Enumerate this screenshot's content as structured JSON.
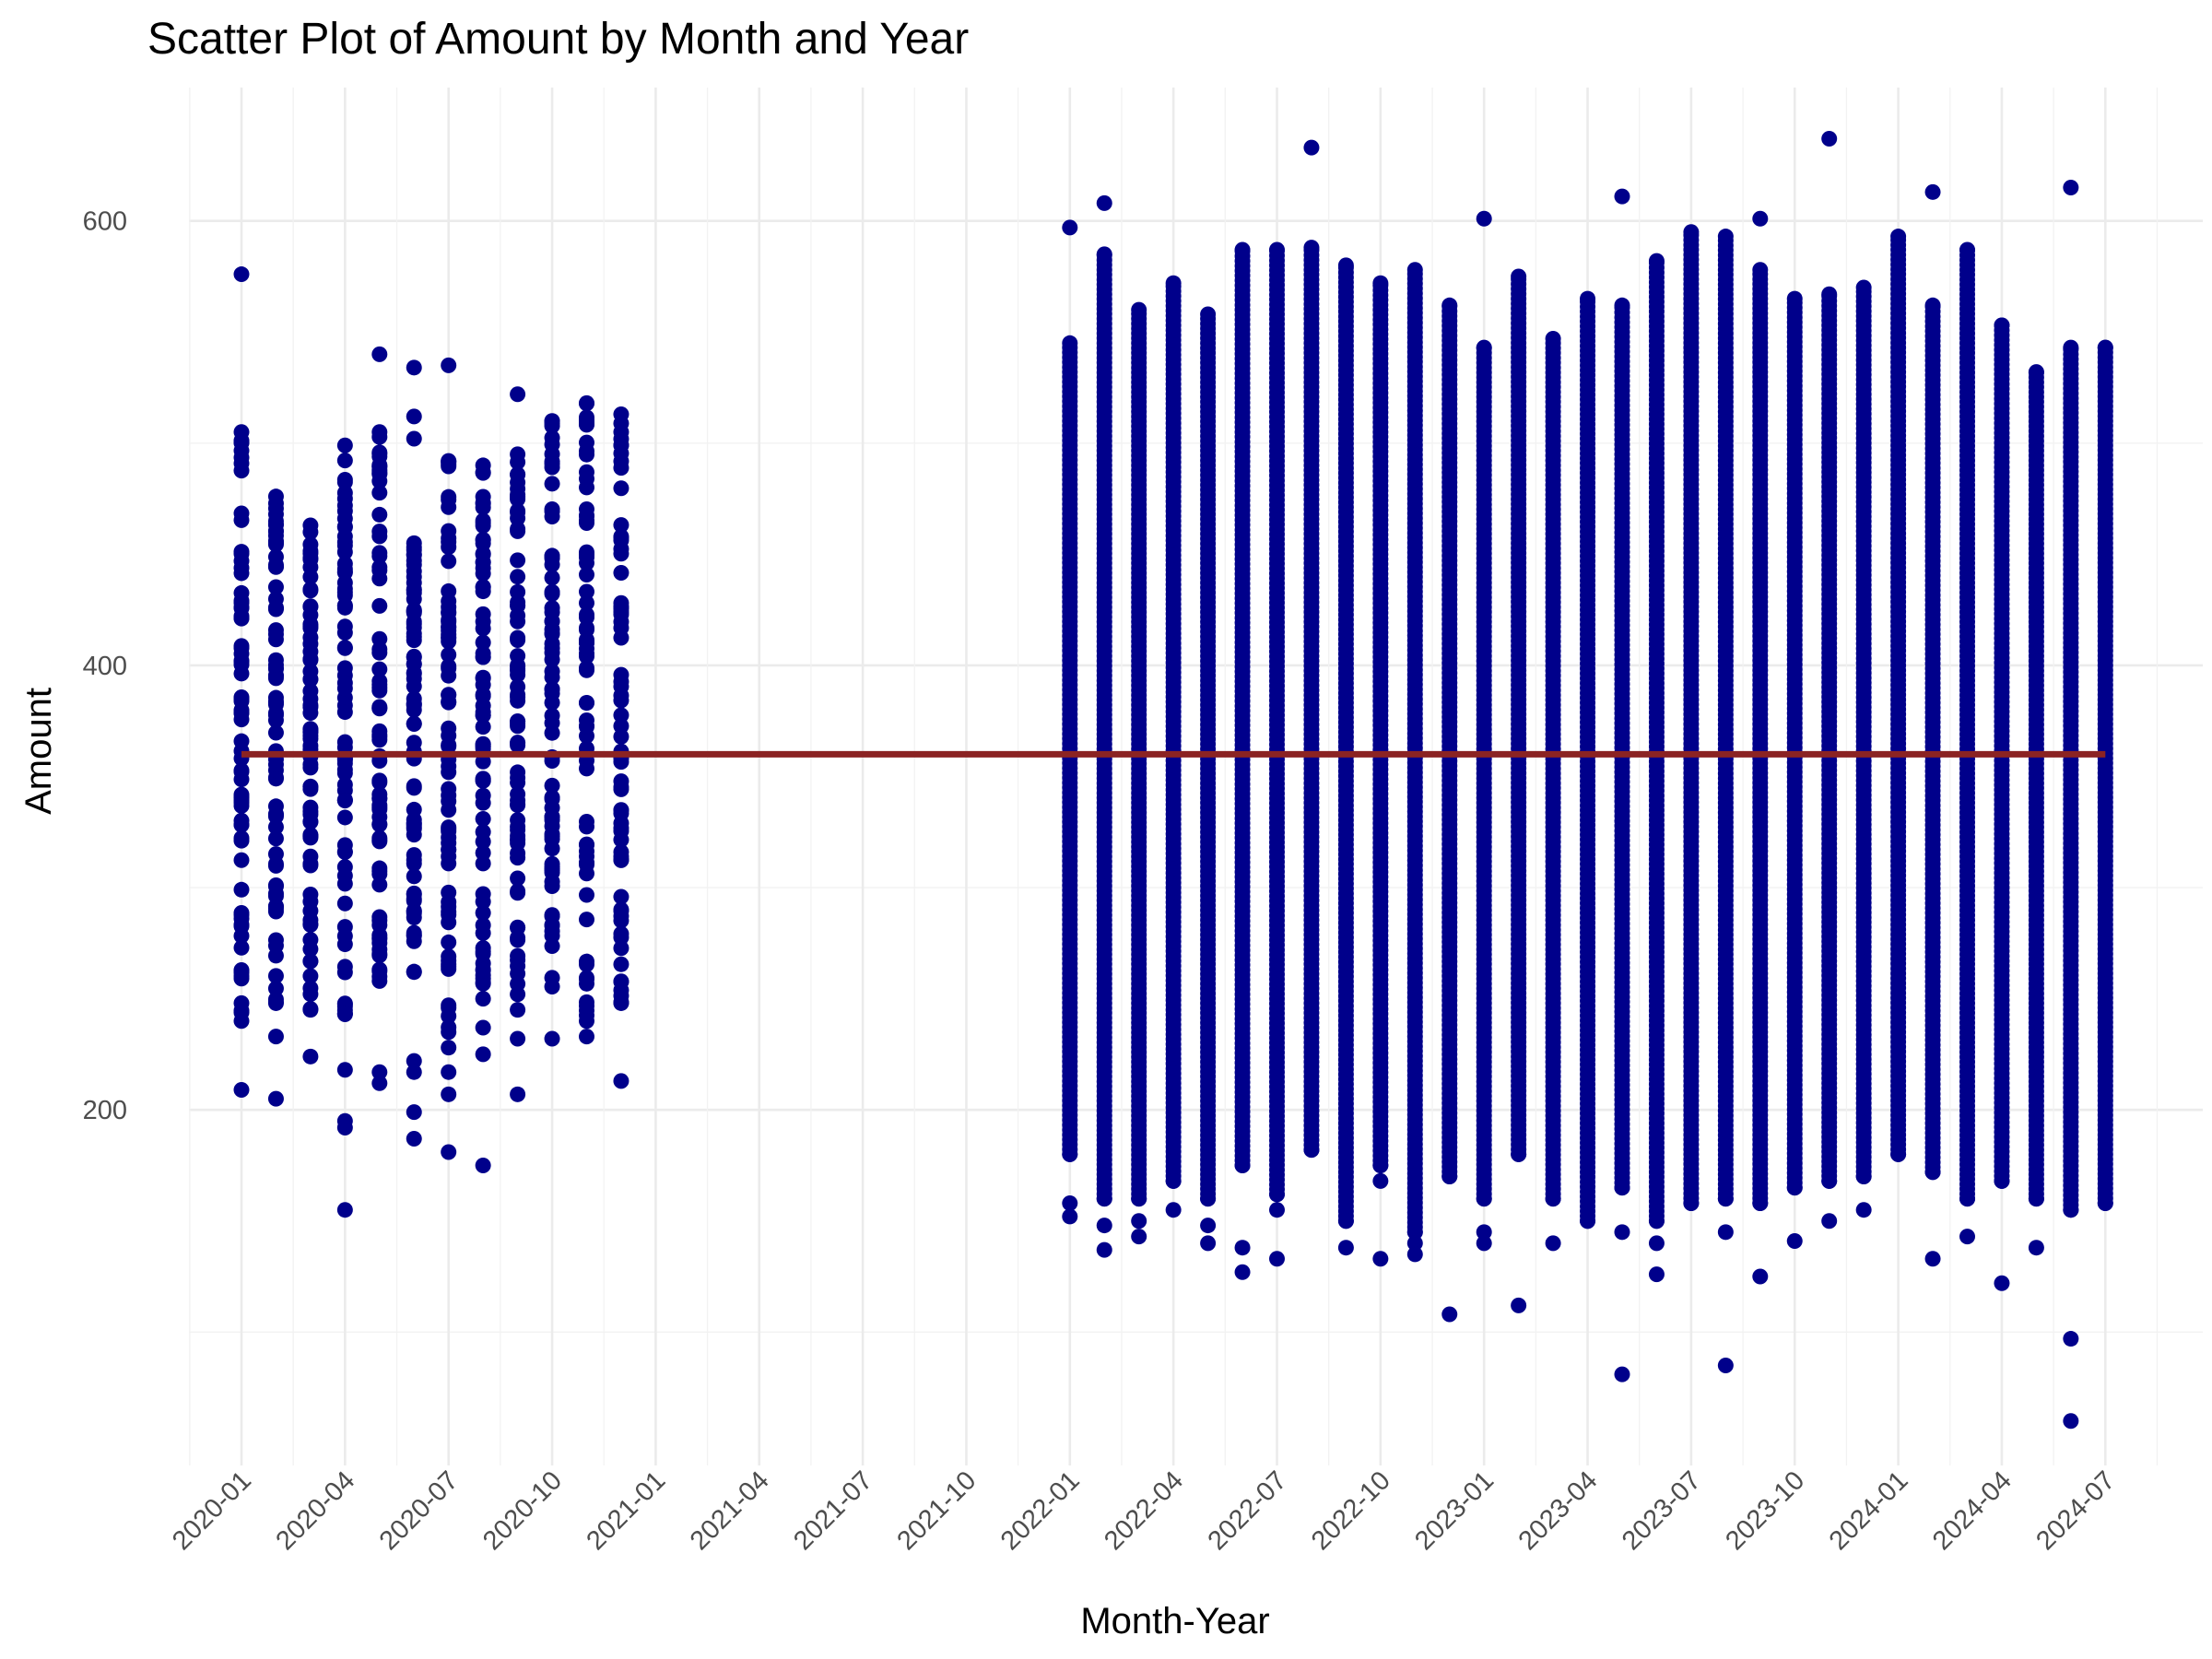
{
  "chart_data": {
    "type": "scatter",
    "title": "Scatter Plot of Amount by Month and Year",
    "xlabel": "Month-Year",
    "ylabel": "Amount",
    "x_ticks": [
      "2020-01",
      "2020-04",
      "2020-07",
      "2020-10",
      "2021-01",
      "2021-04",
      "2021-07",
      "2021-10",
      "2022-01",
      "2022-04",
      "2022-07",
      "2022-10",
      "2023-01",
      "2023-04",
      "2023-07",
      "2023-10",
      "2024-01",
      "2024-04",
      "2024-07"
    ],
    "y_ticks": [
      200,
      400,
      600
    ],
    "ylim": [
      40,
      660
    ],
    "xlim": [
      "2019-11-15",
      "2024-08-15"
    ],
    "grid": true,
    "point_color": "#00008B",
    "line_color": "#8B2323",
    "reference_line": {
      "value": 360,
      "from": "2020-01",
      "to": "2024-07"
    },
    "series": [
      {
        "type": "scatter",
        "points": [
          {
            "x": "2020-01",
            "range": [
              240,
              505
            ],
            "outliers": [
              576,
              209
            ]
          },
          {
            "x": "2020-02",
            "range": [
              248,
              476
            ],
            "outliers": [
              233,
              205
            ]
          },
          {
            "x": "2020-03",
            "range": [
              245,
              463
            ],
            "outliers": [
              224
            ]
          },
          {
            "x": "2020-04",
            "range": [
              243,
              499
            ],
            "outliers": [
              218,
              195,
              192,
              155
            ]
          },
          {
            "x": "2020-05",
            "range": [
              258,
              505
            ],
            "outliers": [
              540,
              217,
              212
            ]
          },
          {
            "x": "2020-06",
            "range": [
              262,
              455
            ],
            "outliers": [
              534,
              512,
              502,
              222,
              217,
              199,
              187
            ]
          },
          {
            "x": "2020-07",
            "range": [
              235,
              492
            ],
            "outliers": [
              535,
              228,
              217,
              207,
              181
            ]
          },
          {
            "x": "2020-08",
            "range": [
              250,
              490
            ],
            "outliers": [
              237,
              225,
              175
            ]
          },
          {
            "x": "2020-09",
            "range": [
              245,
              495
            ],
            "outliers": [
              522,
              232,
              207
            ]
          },
          {
            "x": "2020-10",
            "range": [
              232,
              510
            ],
            "outliers": []
          },
          {
            "x": "2020-11",
            "range": [
              240,
              518
            ],
            "outliers": [
              233
            ]
          },
          {
            "x": "2020-12",
            "range": [
              248,
              513
            ],
            "outliers": [
              213
            ]
          },
          {
            "x": "2022-01",
            "range": [
              180,
              545
            ],
            "outliers": [
              597,
              158,
              152
            ]
          },
          {
            "x": "2022-02",
            "range": [
              160,
              585
            ],
            "outliers": [
              608,
              148,
              137
            ]
          },
          {
            "x": "2022-03",
            "range": [
              160,
              560
            ],
            "outliers": [
              150,
              143
            ]
          },
          {
            "x": "2022-04",
            "range": [
              168,
              572
            ],
            "outliers": [
              155
            ]
          },
          {
            "x": "2022-05",
            "range": [
              160,
              558
            ],
            "outliers": [
              148,
              140
            ]
          },
          {
            "x": "2022-06",
            "range": [
              175,
              587
            ],
            "outliers": [
              138,
              127
            ]
          },
          {
            "x": "2022-07",
            "range": [
              162,
              587
            ],
            "outliers": [
              155,
              133
            ]
          },
          {
            "x": "2022-08",
            "range": [
              182,
              588
            ],
            "outliers": [
              633
            ]
          },
          {
            "x": "2022-09",
            "range": [
              150,
              580
            ],
            "outliers": [
              138
            ]
          },
          {
            "x": "2022-10",
            "range": [
              175,
              572
            ],
            "outliers": [
              168,
              133
            ]
          },
          {
            "x": "2022-11",
            "range": [
              145,
              578
            ],
            "outliers": [
              140,
              135
            ]
          },
          {
            "x": "2022-12",
            "range": [
              170,
              562
            ],
            "outliers": [
              108
            ]
          },
          {
            "x": "2023-01",
            "range": [
              160,
              543
            ],
            "outliers": [
              601,
              145,
              140
            ]
          },
          {
            "x": "2023-02",
            "range": [
              180,
              575
            ],
            "outliers": [
              112
            ]
          },
          {
            "x": "2023-03",
            "range": [
              160,
              547
            ],
            "outliers": [
              140
            ]
          },
          {
            "x": "2023-04",
            "range": [
              150,
              565
            ],
            "outliers": []
          },
          {
            "x": "2023-05",
            "range": [
              165,
              562
            ],
            "outliers": [
              611,
              145,
              81
            ]
          },
          {
            "x": "2023-06",
            "range": [
              150,
              582
            ],
            "outliers": [
              140,
              126
            ]
          },
          {
            "x": "2023-07",
            "range": [
              158,
              595
            ],
            "outliers": []
          },
          {
            "x": "2023-08",
            "range": [
              160,
              593
            ],
            "outliers": [
              145,
              85
            ]
          },
          {
            "x": "2023-09",
            "range": [
              158,
              578
            ],
            "outliers": [
              601,
              125
            ]
          },
          {
            "x": "2023-10",
            "range": [
              165,
              565
            ],
            "outliers": [
              141
            ]
          },
          {
            "x": "2023-11",
            "range": [
              168,
              567
            ],
            "outliers": [
              637,
              150
            ]
          },
          {
            "x": "2023-12",
            "range": [
              170,
              570
            ],
            "outliers": [
              155
            ]
          },
          {
            "x": "2024-01",
            "range": [
              180,
              593
            ],
            "outliers": []
          },
          {
            "x": "2024-02",
            "range": [
              172,
              562
            ],
            "outliers": [
              613,
              133
            ]
          },
          {
            "x": "2024-03",
            "range": [
              160,
              587
            ],
            "outliers": [
              143
            ]
          },
          {
            "x": "2024-04",
            "range": [
              168,
              553
            ],
            "outliers": [
              122
            ]
          },
          {
            "x": "2024-05",
            "range": [
              160,
              532
            ],
            "outliers": [
              138
            ]
          },
          {
            "x": "2024-06",
            "range": [
              155,
              543
            ],
            "outliers": [
              615,
              97,
              60
            ]
          },
          {
            "x": "2024-07",
            "range": [
              158,
              543
            ],
            "outliers": []
          }
        ]
      }
    ]
  }
}
